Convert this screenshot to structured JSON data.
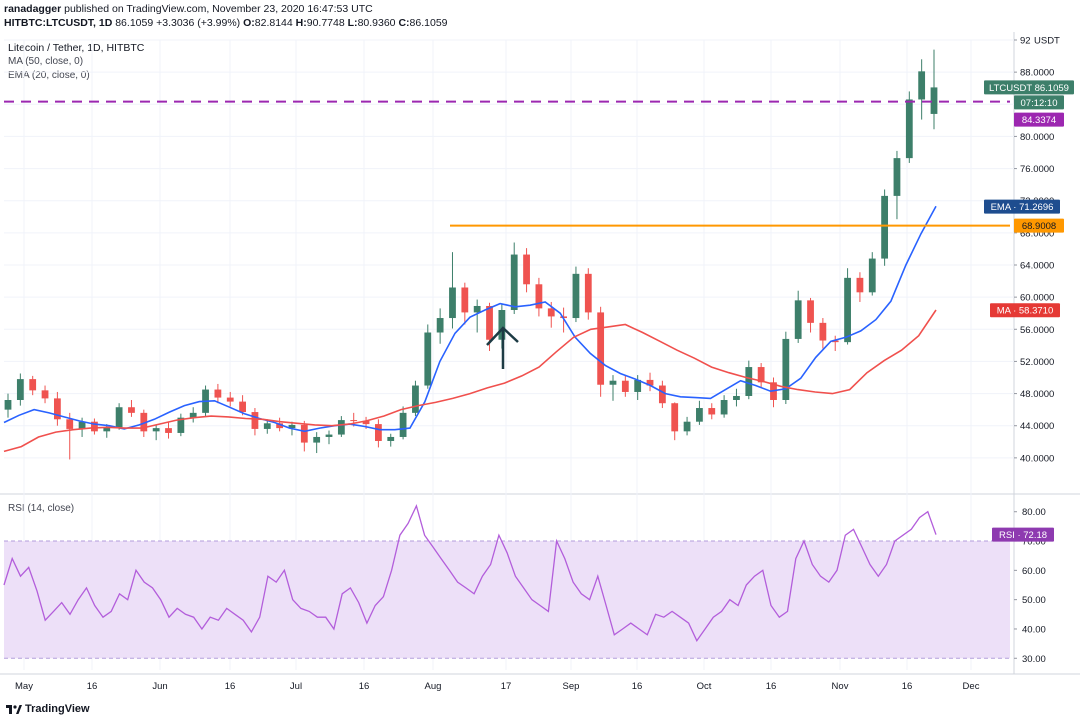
{
  "header": {
    "user": "ranadagger",
    "published": "published on TradingView.com, November 23, 2020 16:47:53 UTC"
  },
  "symbol_bar": {
    "symbol": "HITBTC:LTCUSDT, 1D",
    "price": "86.1059",
    "change": "+3.3036 (+3.99%)",
    "o_label": "O:",
    "o": "82.8144",
    "h_label": "H:",
    "h": "90.7748",
    "l_label": "L:",
    "l": "80.9360",
    "c_label": "C:",
    "c": "86.1059"
  },
  "legend": {
    "title": "Litecoin / Tether, 1D, HITBTC",
    "ma": "MA (50, close, 0)",
    "ema": "EMA (20, close, 0)",
    "rsi": "RSI (14, close)"
  },
  "footer": {
    "brand": "TradingView"
  },
  "colors": {
    "up": "#26a69a",
    "down": "#ef5350",
    "candle": "#3d7f6a",
    "ema": "#2962ff",
    "ma": "#f0504d",
    "resistance": "#ff9800",
    "current_price": "#9c27b0",
    "rsi": "#b35edb",
    "rsi_band": "#ede0f8"
  },
  "chart_data": [
    {
      "type": "candlestick",
      "title": "Litecoin / Tether, 1D, HITBTC",
      "currency": "USDT",
      "x_ticks": [
        "May",
        "16",
        "Jun",
        "16",
        "Jul",
        "16",
        "Aug",
        "17",
        "Sep",
        "16",
        "Oct",
        "16",
        "Nov",
        "16",
        "Dec"
      ],
      "y_ticks": [
        "40.0000",
        "44.0000",
        "48.0000",
        "52.0000",
        "56.0000",
        "60.0000",
        "64.0000",
        "68.0000",
        "72.0000",
        "76.0000",
        "80.0000",
        "84.0000",
        "88.0000",
        "92"
      ],
      "ylim": [
        36,
        92
      ],
      "series": [
        {
          "name": "EMA",
          "label": "EMA",
          "value": "71.2696",
          "values": [
            44.4,
            45.3,
            46.0,
            45.6,
            45.1,
            44.6,
            44.2,
            44.0,
            43.6,
            44.1,
            44.8,
            45.7,
            46.5,
            47.0,
            47.1,
            46.3,
            45.5,
            44.9,
            44.4,
            43.7,
            43.3,
            43.7,
            44.0,
            44.2,
            43.9,
            43.5,
            43.5,
            43.7,
            47.0,
            52.0,
            55.5,
            57.5,
            58.4,
            59.2,
            58.8,
            59.0,
            59.4,
            58.0,
            55.0,
            53.0,
            51.5,
            50.5,
            49.8,
            49.0,
            48.0,
            47.6,
            47.5,
            47.4,
            48.5,
            49.6,
            49.0,
            48.3,
            48.6,
            49.9,
            52.5,
            54.5,
            55.0,
            55.8,
            57.2,
            59.5,
            64.0,
            67.9,
            71.3
          ]
        },
        {
          "name": "MA",
          "label": "MA",
          "value": "58.3710",
          "values": [
            40.8,
            41.4,
            42.6,
            43.2,
            43.5,
            43.7,
            43.8,
            43.7,
            43.7,
            44.2,
            44.7,
            45.0,
            45.2,
            45.1,
            44.9,
            44.8,
            44.5,
            44.3,
            44.1,
            44.0,
            44.2,
            44.6,
            45.2,
            46.0,
            46.5,
            46.9,
            47.4,
            48.0,
            48.7,
            49.3,
            50.2,
            51.3,
            53.2,
            55.0,
            56.0,
            56.3,
            56.6,
            55.6,
            54.5,
            53.4,
            52.4,
            51.3,
            50.6,
            50.0,
            49.5,
            48.9,
            48.5,
            48.2,
            48.0,
            48.5,
            50.6,
            52.1,
            53.4,
            55.2,
            58.4
          ]
        }
      ],
      "resistance": {
        "label": "68.9008",
        "value": 68.9008
      },
      "current_price": {
        "label": "LTCUSDT",
        "value": "86.1059",
        "countdown": "07:12:10",
        "line_value": 84.3374,
        "line_label": "84.3374"
      },
      "candles": [
        {
          "o": 46,
          "h": 48,
          "l": 45,
          "c": 47.2
        },
        {
          "o": 47.2,
          "h": 50.5,
          "l": 46.5,
          "c": 49.8
        },
        {
          "o": 49.8,
          "h": 50.2,
          "l": 47.8,
          "c": 48.4
        },
        {
          "o": 48.4,
          "h": 49,
          "l": 46.8,
          "c": 47.4
        },
        {
          "o": 47.4,
          "h": 48.2,
          "l": 44,
          "c": 44.8
        },
        {
          "o": 44.8,
          "h": 45.6,
          "l": 39.8,
          "c": 43.6
        },
        {
          "o": 43.6,
          "h": 45,
          "l": 42.6,
          "c": 44.5
        },
        {
          "o": 44.5,
          "h": 44.9,
          "l": 42.9,
          "c": 43.3
        },
        {
          "o": 43.3,
          "h": 44.2,
          "l": 42.5,
          "c": 43.8
        },
        {
          "o": 43.8,
          "h": 46.8,
          "l": 43.5,
          "c": 46.3
        },
        {
          "o": 46.3,
          "h": 47.2,
          "l": 45.1,
          "c": 45.6
        },
        {
          "o": 45.6,
          "h": 46,
          "l": 42.6,
          "c": 43.3
        },
        {
          "o": 43.3,
          "h": 44.1,
          "l": 42.2,
          "c": 43.7
        },
        {
          "o": 43.7,
          "h": 44.5,
          "l": 42.4,
          "c": 43.1
        },
        {
          "o": 43.1,
          "h": 45.5,
          "l": 42.7,
          "c": 45
        },
        {
          "o": 45,
          "h": 46.3,
          "l": 44.4,
          "c": 45.6
        },
        {
          "o": 45.6,
          "h": 49,
          "l": 45.1,
          "c": 48.5
        },
        {
          "o": 48.5,
          "h": 49.2,
          "l": 46.8,
          "c": 47.5
        },
        {
          "o": 47.5,
          "h": 48.2,
          "l": 46.4,
          "c": 47
        },
        {
          "o": 47,
          "h": 47.8,
          "l": 45.3,
          "c": 45.7
        },
        {
          "o": 45.7,
          "h": 46.2,
          "l": 42.8,
          "c": 43.6
        },
        {
          "o": 43.6,
          "h": 44.8,
          "l": 43,
          "c": 44.3
        },
        {
          "o": 44.3,
          "h": 45,
          "l": 43.3,
          "c": 43.7
        },
        {
          "o": 43.7,
          "h": 44.5,
          "l": 42.8,
          "c": 44.1
        },
        {
          "o": 44.1,
          "h": 44.6,
          "l": 40.8,
          "c": 41.9
        },
        {
          "o": 41.9,
          "h": 43.2,
          "l": 40.6,
          "c": 42.6
        },
        {
          "o": 42.6,
          "h": 43.4,
          "l": 41.7,
          "c": 42.9
        },
        {
          "o": 42.9,
          "h": 45.2,
          "l": 42.6,
          "c": 44.7
        },
        {
          "o": 44.7,
          "h": 45.6,
          "l": 43.9,
          "c": 44.6
        },
        {
          "o": 44.6,
          "h": 45.1,
          "l": 43.6,
          "c": 44.2
        },
        {
          "o": 44.2,
          "h": 44.8,
          "l": 41.3,
          "c": 42.1
        },
        {
          "o": 42.1,
          "h": 43,
          "l": 41.4,
          "c": 42.6
        },
        {
          "o": 42.6,
          "h": 46.4,
          "l": 42.3,
          "c": 45.6
        },
        {
          "o": 45.6,
          "h": 49.6,
          "l": 45.2,
          "c": 49
        },
        {
          "o": 49,
          "h": 56.6,
          "l": 48.6,
          "c": 55.6
        },
        {
          "o": 55.6,
          "h": 58.6,
          "l": 54.2,
          "c": 57.4
        },
        {
          "o": 57.4,
          "h": 65.6,
          "l": 56.1,
          "c": 61.2
        },
        {
          "o": 61.2,
          "h": 61.8,
          "l": 56.6,
          "c": 58.1
        },
        {
          "o": 58.1,
          "h": 59.7,
          "l": 55.6,
          "c": 58.9
        },
        {
          "o": 58.9,
          "h": 59.3,
          "l": 53.3,
          "c": 54.7
        },
        {
          "o": 54.7,
          "h": 59.1,
          "l": 53.6,
          "c": 58.4
        },
        {
          "o": 58.4,
          "h": 66.8,
          "l": 57.9,
          "c": 65.3
        },
        {
          "o": 65.3,
          "h": 66.1,
          "l": 60.6,
          "c": 61.6
        },
        {
          "o": 61.6,
          "h": 62.4,
          "l": 57.6,
          "c": 58.6
        },
        {
          "o": 58.6,
          "h": 59.4,
          "l": 56.2,
          "c": 57.6
        },
        {
          "o": 57.6,
          "h": 58.7,
          "l": 55.6,
          "c": 57.4
        },
        {
          "o": 57.4,
          "h": 63.8,
          "l": 56.9,
          "c": 62.9
        },
        {
          "o": 62.9,
          "h": 63.6,
          "l": 57.2,
          "c": 58.1
        },
        {
          "o": 58.1,
          "h": 58.8,
          "l": 47.6,
          "c": 49.1
        },
        {
          "o": 49.1,
          "h": 50.3,
          "l": 47.1,
          "c": 49.6
        },
        {
          "o": 49.6,
          "h": 50.2,
          "l": 47.6,
          "c": 48.2
        },
        {
          "o": 48.2,
          "h": 50.3,
          "l": 47.2,
          "c": 49.7
        },
        {
          "o": 49.7,
          "h": 50.6,
          "l": 48.3,
          "c": 49
        },
        {
          "o": 49,
          "h": 49.6,
          "l": 46.2,
          "c": 46.8
        },
        {
          "o": 46.8,
          "h": 46.9,
          "l": 42.2,
          "c": 43.3
        },
        {
          "o": 43.3,
          "h": 45.1,
          "l": 42.8,
          "c": 44.5
        },
        {
          "o": 44.5,
          "h": 47.1,
          "l": 44.1,
          "c": 46.2
        },
        {
          "o": 46.2,
          "h": 46.8,
          "l": 44.8,
          "c": 45.4
        },
        {
          "o": 45.4,
          "h": 47.8,
          "l": 45,
          "c": 47.2
        },
        {
          "o": 47.2,
          "h": 48.6,
          "l": 46.4,
          "c": 47.7
        },
        {
          "o": 47.7,
          "h": 52.1,
          "l": 47.3,
          "c": 51.3
        },
        {
          "o": 51.3,
          "h": 51.8,
          "l": 48.7,
          "c": 49.4
        },
        {
          "o": 49.4,
          "h": 50,
          "l": 46.3,
          "c": 47.2
        },
        {
          "o": 47.2,
          "h": 55.7,
          "l": 46.7,
          "c": 54.8
        },
        {
          "o": 54.8,
          "h": 60.8,
          "l": 54.3,
          "c": 59.6
        },
        {
          "o": 59.6,
          "h": 59.9,
          "l": 55.6,
          "c": 56.8
        },
        {
          "o": 56.8,
          "h": 57.4,
          "l": 53.6,
          "c": 54.6
        },
        {
          "o": 54.6,
          "h": 55.2,
          "l": 53.3,
          "c": 54.4
        },
        {
          "o": 54.4,
          "h": 63.6,
          "l": 54.1,
          "c": 62.4
        },
        {
          "o": 62.4,
          "h": 63.1,
          "l": 59.4,
          "c": 60.6
        },
        {
          "o": 60.6,
          "h": 65.6,
          "l": 60.2,
          "c": 64.8
        },
        {
          "o": 64.8,
          "h": 73.4,
          "l": 63.9,
          "c": 72.6
        },
        {
          "o": 72.6,
          "h": 78.2,
          "l": 69.7,
          "c": 77.3
        },
        {
          "o": 77.3,
          "h": 85.6,
          "l": 76.7,
          "c": 84.6
        },
        {
          "o": 84.6,
          "h": 89.6,
          "l": 82.1,
          "c": 88.1
        },
        {
          "o": 82.8,
          "h": 90.8,
          "l": 80.9,
          "c": 86.1
        }
      ]
    },
    {
      "type": "line",
      "title": "RSI (14, close)",
      "label": "RSI",
      "value": "72.18",
      "y_ticks": [
        "30.00",
        "40.00",
        "50.00",
        "60.00",
        "70.00",
        "80.00"
      ],
      "ylim": [
        26,
        84
      ],
      "band": [
        30,
        70
      ],
      "values": [
        55,
        64,
        58,
        61,
        53,
        43,
        46,
        49,
        45,
        50,
        54,
        48,
        44,
        46,
        52,
        50,
        60,
        56,
        54,
        50,
        44,
        47,
        45,
        44,
        40,
        44,
        43,
        47,
        45,
        43,
        39,
        44,
        58,
        56,
        60,
        50,
        47,
        46,
        44,
        44,
        40,
        52,
        54,
        49,
        42,
        48,
        51,
        60,
        72,
        76,
        82,
        72,
        68,
        64,
        60,
        56,
        54,
        52,
        58,
        62,
        72,
        66,
        58,
        54,
        50,
        48,
        46,
        70,
        64,
        56,
        52,
        50,
        58,
        48,
        38,
        40,
        42,
        40,
        38,
        45,
        44,
        46,
        44,
        42,
        36,
        40,
        44,
        46,
        50,
        48,
        55,
        58,
        60,
        48,
        44,
        46,
        64,
        70,
        62,
        58,
        56,
        60,
        72,
        74,
        68,
        62,
        58,
        62,
        70,
        72,
        74,
        78,
        80,
        72.18
      ]
    }
  ]
}
